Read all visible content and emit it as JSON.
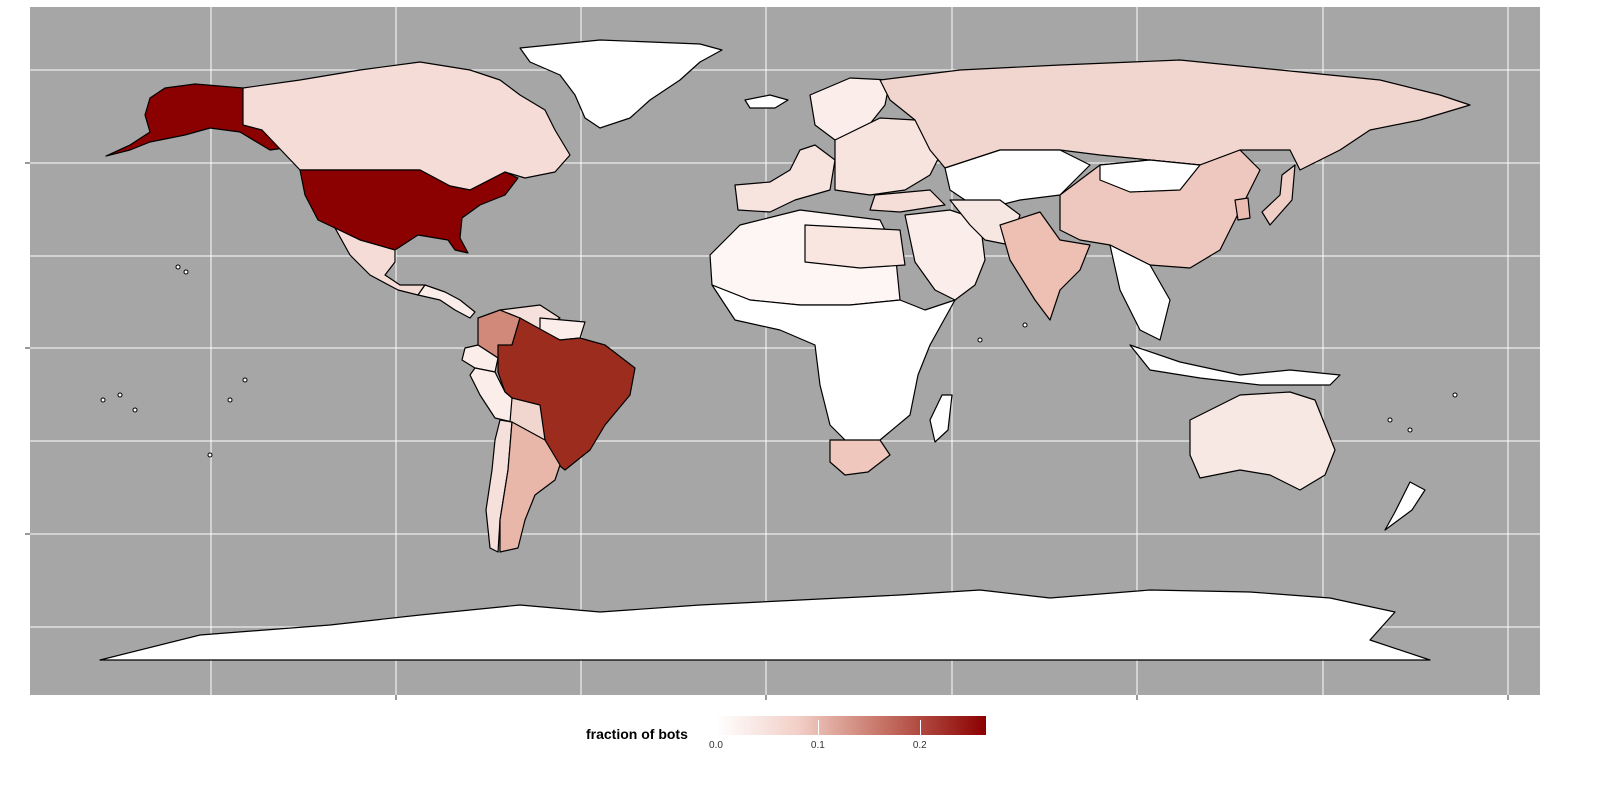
{
  "map": {
    "panel_background": "#a6a6a6",
    "gridline_color": "#ffffff",
    "border_color": "#000000",
    "countries": [
      {
        "name": "greenland-region",
        "fill": "#ffffff"
      },
      {
        "name": "alaska-region",
        "fill": "#8b0000"
      },
      {
        "name": "canada-region",
        "fill": "#f6dcd7"
      },
      {
        "name": "usa-region",
        "fill": "#8b0000"
      },
      {
        "name": "mexico-region",
        "fill": "#f6dcd7"
      },
      {
        "name": "central-america-region",
        "fill": "#fbeeea"
      },
      {
        "name": "colombia-region",
        "fill": "#d1897a"
      },
      {
        "name": "venezuela-region",
        "fill": "#f5e0db"
      },
      {
        "name": "northern-south-america-region",
        "fill": "#fbeeea"
      },
      {
        "name": "brazil-region",
        "fill": "#9c2d1e"
      },
      {
        "name": "peru-region",
        "fill": "#fbeeea"
      },
      {
        "name": "bolivia-region",
        "fill": "#f1d6cf"
      },
      {
        "name": "chile-region",
        "fill": "#f5e0db"
      },
      {
        "name": "argentina-region",
        "fill": "#e8b7aa"
      },
      {
        "name": "iceland-region",
        "fill": "#ffffff"
      },
      {
        "name": "western-europe-region",
        "fill": "#f7e4df"
      },
      {
        "name": "scandinavia-region",
        "fill": "#fbeeea"
      },
      {
        "name": "eastern-europe-region",
        "fill": "#f7e4df"
      },
      {
        "name": "russia-region",
        "fill": "#f1d5cf"
      },
      {
        "name": "turkey-region",
        "fill": "#f5ddd8"
      },
      {
        "name": "central-asia-region",
        "fill": "#ffffff"
      },
      {
        "name": "middle-east-region",
        "fill": "#fbeeea"
      },
      {
        "name": "iran-region",
        "fill": "#f7e7e3"
      },
      {
        "name": "india-region",
        "fill": "#eebfb3"
      },
      {
        "name": "china-region",
        "fill": "#eec8be"
      },
      {
        "name": "mongolia-region",
        "fill": "#ffffff"
      },
      {
        "name": "japan-region",
        "fill": "#f0cfc7"
      },
      {
        "name": "korea-region",
        "fill": "#ebbdb2"
      },
      {
        "name": "southeast-asia-region",
        "fill": "#ffffff"
      },
      {
        "name": "indonesia-region",
        "fill": "#ffffff"
      },
      {
        "name": "north-africa-region",
        "fill": "#fdf6f4"
      },
      {
        "name": "egypt-libya-region",
        "fill": "#f9e6e1"
      },
      {
        "name": "subsaharan-africa-region",
        "fill": "#ffffff"
      },
      {
        "name": "south-africa-region",
        "fill": "#efc7bd"
      },
      {
        "name": "madagascar-region",
        "fill": "#ffffff"
      },
      {
        "name": "australia-region",
        "fill": "#f8e8e4"
      },
      {
        "name": "new-zealand-region",
        "fill": "#ffffff"
      },
      {
        "name": "antarctica-region",
        "fill": "#ffffff"
      }
    ]
  },
  "legend": {
    "title": "fraction of bots",
    "min_color": "#ffffff",
    "max_color": "#8b0000",
    "ticks": [
      {
        "label": "0.0",
        "value": 0.0
      },
      {
        "label": "0.1",
        "value": 0.1
      },
      {
        "label": "0.2",
        "value": 0.2
      }
    ],
    "max_value": 0.265
  }
}
